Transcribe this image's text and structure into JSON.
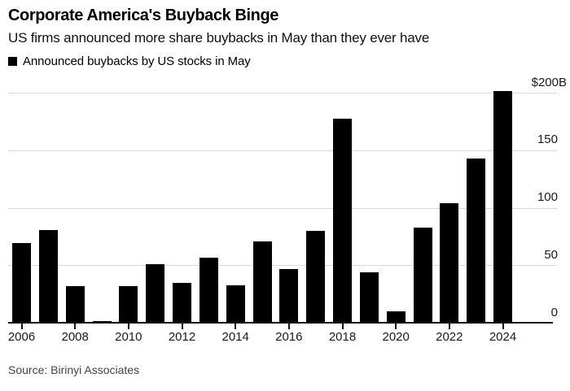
{
  "header": {
    "title": "Corporate America's Buyback Binge",
    "subtitle": "US firms announced more share buybacks in May than they ever have"
  },
  "legend": {
    "marker_color": "#000000",
    "label": "Announced buybacks by US stocks in May"
  },
  "footer": {
    "source": "Source: Birinyi Associates"
  },
  "colors": {
    "background": "#ffffff",
    "bar": "#000000",
    "gridline": "#d8d8d8",
    "axis": "#141414",
    "tick_label": "#1a1a1a",
    "source_text": "#454545"
  },
  "chart_data": {
    "type": "bar",
    "title": "Corporate America's Buyback Binge",
    "subtitle": "US firms announced more share buybacks in May than they ever have",
    "series_name": "Announced buybacks by US stocks in May",
    "unit": "billions of US dollars",
    "categories": [
      2006,
      2007,
      2008,
      2009,
      2010,
      2011,
      2012,
      2013,
      2014,
      2015,
      2016,
      2017,
      2018,
      2019,
      2020,
      2021,
      2022,
      2023,
      2024
    ],
    "values": [
      70,
      81,
      32,
      2,
      32,
      51,
      35,
      57,
      33,
      71,
      47,
      80,
      178,
      44,
      10,
      83,
      104,
      143,
      202
    ],
    "ylim": [
      0,
      205
    ],
    "yticks": [
      0,
      50,
      100,
      150,
      200
    ],
    "ytick_labels": [
      "0",
      "50",
      "100",
      "150",
      "$200B"
    ],
    "xtick_labels": [
      "2006",
      "2008",
      "2010",
      "2012",
      "2014",
      "2016",
      "2018",
      "2020",
      "2022",
      "2024"
    ],
    "grid": "horizontal",
    "legend_position": "top-left",
    "y_axis_side": "right",
    "source": "Source: Birinyi Associates"
  }
}
